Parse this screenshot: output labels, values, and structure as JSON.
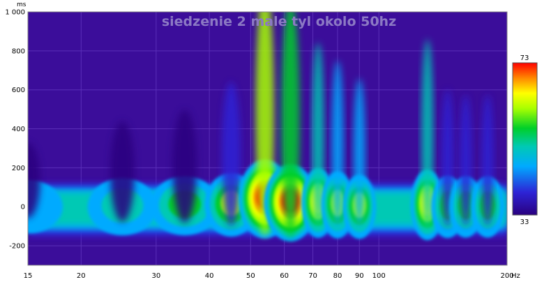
{
  "chart_data": {
    "type": "heatmap",
    "title": "siedzenie 2 male tyl okolo 50hz",
    "xlabel": "",
    "ylabel": "",
    "x_unit": "Hz",
    "y_unit": "ms",
    "x_scale": "log",
    "xlim": [
      15,
      200
    ],
    "ylim": [
      -300,
      1000
    ],
    "x_ticks": [
      15,
      20,
      30,
      40,
      50,
      60,
      70,
      80,
      90,
      100,
      200
    ],
    "x_tick_labels": [
      "15",
      "20",
      "30",
      "40",
      "50",
      "60",
      "70",
      "80",
      "90",
      "100",
      "200"
    ],
    "y_ticks": [
      -200,
      0,
      200,
      400,
      600,
      800,
      1000
    ],
    "y_tick_labels": [
      "-200",
      "0",
      "200",
      "400",
      "600",
      "800",
      "1 000"
    ],
    "grid": true,
    "colorbar": {
      "min": 33,
      "max": 73,
      "min_label": "33",
      "max_label": "73"
    },
    "peaks": [
      {
        "freq": 15,
        "time_ms": 0,
        "level_db": 45
      },
      {
        "freq": 25,
        "time_ms": 0,
        "level_db": 49
      },
      {
        "freq": 35,
        "time_ms": 5,
        "level_db": 51
      },
      {
        "freq": 45,
        "time_ms": 10,
        "level_db": 56
      },
      {
        "freq": 54,
        "time_ms": 40,
        "level_db": 73
      },
      {
        "freq": 62,
        "time_ms": 20,
        "level_db": 71
      },
      {
        "freq": 72,
        "time_ms": 20,
        "level_db": 63
      },
      {
        "freq": 80,
        "time_ms": 10,
        "level_db": 60
      },
      {
        "freq": 90,
        "time_ms": 0,
        "level_db": 57
      },
      {
        "freq": 130,
        "time_ms": 10,
        "level_db": 64
      },
      {
        "freq": 145,
        "time_ms": 0,
        "level_db": 55
      },
      {
        "freq": 160,
        "time_ms": 0,
        "level_db": 54
      },
      {
        "freq": 180,
        "time_ms": 0,
        "level_db": 54
      }
    ],
    "colors": {
      "background": "#3b0d9a",
      "grid": "#5a2fb8",
      "title": "#8c79c4",
      "scale": [
        "#2a007f",
        "#2d24d6",
        "#00aaff",
        "#00c9b4",
        "#00cf2a",
        "#a8ff00",
        "#ffff00",
        "#ff8800",
        "#ff0000"
      ]
    }
  }
}
